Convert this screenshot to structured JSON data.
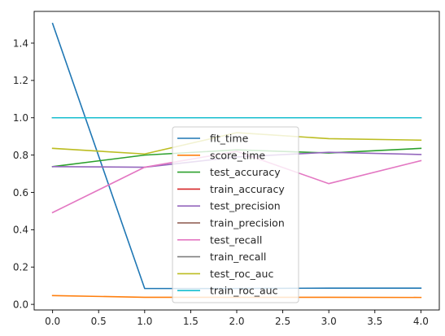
{
  "chart_data": {
    "type": "line",
    "title": "",
    "xlabel": "",
    "ylabel": "",
    "x": [
      0,
      1,
      2,
      3,
      4
    ],
    "xlim": [
      -0.2,
      4.2
    ],
    "ylim": [
      -0.03,
      1.57
    ],
    "xticks": [
      0.0,
      0.5,
      1.0,
      1.5,
      2.0,
      2.5,
      3.0,
      3.5,
      4.0
    ],
    "xtick_labels": [
      "0.0",
      "0.5",
      "1.0",
      "1.5",
      "2.0",
      "2.5",
      "3.0",
      "3.5",
      "4.0"
    ],
    "yticks": [
      0.0,
      0.2,
      0.4,
      0.6,
      0.8,
      1.0,
      1.2,
      1.4
    ],
    "ytick_labels": [
      "0.0",
      "0.2",
      "0.4",
      "0.6",
      "0.8",
      "1.0",
      "1.2",
      "1.4"
    ],
    "grid": false,
    "legend_position": "center",
    "series": [
      {
        "name": "fit_time",
        "color": "#1f77b4",
        "values": [
          1.505,
          0.085,
          0.085,
          0.087,
          0.087
        ]
      },
      {
        "name": "score_time",
        "color": "#ff7f0e",
        "values": [
          0.047,
          0.038,
          0.038,
          0.038,
          0.037
        ]
      },
      {
        "name": "test_accuracy",
        "color": "#2ca02c",
        "values": [
          0.738,
          0.8,
          0.828,
          0.811,
          0.836
        ]
      },
      {
        "name": "train_accuracy",
        "color": "#d62728",
        "values": [
          1.0,
          1.0,
          1.0,
          1.0,
          1.0
        ]
      },
      {
        "name": "test_precision",
        "color": "#9467bd",
        "values": [
          0.738,
          0.735,
          0.79,
          0.815,
          0.803
        ]
      },
      {
        "name": "train_precision",
        "color": "#8c564b",
        "values": [
          1.0,
          1.0,
          1.0,
          1.0,
          1.0
        ]
      },
      {
        "name": "test_recall",
        "color": "#e377c2",
        "values": [
          0.492,
          0.735,
          0.82,
          0.647,
          0.77
        ]
      },
      {
        "name": "train_recall",
        "color": "#7f7f7f",
        "values": [
          1.0,
          1.0,
          1.0,
          1.0,
          1.0
        ]
      },
      {
        "name": "test_roc_auc",
        "color": "#bcbd22",
        "values": [
          0.836,
          0.806,
          0.92,
          0.888,
          0.88
        ]
      },
      {
        "name": "train_roc_auc",
        "color": "#17becf",
        "values": [
          1.0,
          1.0,
          1.0,
          1.0,
          1.0
        ]
      }
    ]
  }
}
